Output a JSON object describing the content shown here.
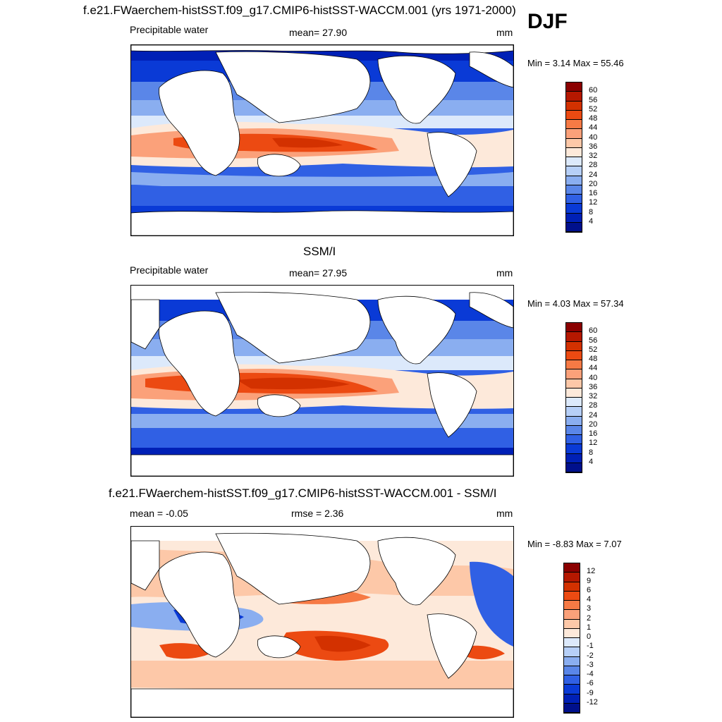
{
  "header": {
    "model_title": "f.e21.FWaerchem-histSST.f09_g17.CMIP6-histSST-WACCM.001 (yrs 1971-2000)",
    "season": "DJF"
  },
  "panels": [
    {
      "id": "model",
      "variable": "Precipitable water",
      "stat_text": "mean=  27.90",
      "units": "mm",
      "range_text": "Min =   3.14 Max =  55.46",
      "colorbar": {
        "labels": [
          "60",
          "56",
          "52",
          "48",
          "44",
          "40",
          "36",
          "32",
          "28",
          "24",
          "20",
          "16",
          "12",
          "8",
          "4"
        ],
        "colors": [
          "#8b0000",
          "#b51800",
          "#d33100",
          "#ec4a12",
          "#f67a45",
          "#fba17a",
          "#fdc8a8",
          "#fde9da",
          "#dce9fb",
          "#b6cff7",
          "#8aaef0",
          "#5a86e8",
          "#3060e4",
          "#0a3ad6",
          "#0020b6",
          "#00108c"
        ]
      }
    },
    {
      "id": "obs",
      "panel_title": "SSM/I",
      "variable": "Precipitable water",
      "stat_text": "mean=  27.95",
      "units": "mm",
      "range_text": "Min =   4.03 Max =  57.34",
      "colorbar": {
        "labels": [
          "60",
          "56",
          "52",
          "48",
          "44",
          "40",
          "36",
          "32",
          "28",
          "24",
          "20",
          "16",
          "12",
          "8",
          "4"
        ],
        "colors": [
          "#8b0000",
          "#b51800",
          "#d33100",
          "#ec4a12",
          "#f67a45",
          "#fba17a",
          "#fdc8a8",
          "#fde9da",
          "#dce9fb",
          "#b6cff7",
          "#8aaef0",
          "#5a86e8",
          "#3060e4",
          "#0a3ad6",
          "#0020b6",
          "#00108c"
        ]
      }
    },
    {
      "id": "diff",
      "panel_title": "f.e21.FWaerchem-histSST.f09_g17.CMIP6-histSST-WACCM.001 - SSM/I",
      "stat_text": "mean =  -0.05",
      "rmse_text": "rmse =   2.36",
      "units": "mm",
      "range_text": "Min =  -8.83 Max =   7.07",
      "colorbar": {
        "labels": [
          "12",
          "9",
          "6",
          "4",
          "3",
          "2",
          "1",
          "0",
          "-1",
          "-2",
          "-3",
          "-4",
          "-6",
          "-9",
          "-12"
        ],
        "colors": [
          "#8b0000",
          "#b51800",
          "#d33100",
          "#ec4a12",
          "#f67a45",
          "#fba17a",
          "#fdc8a8",
          "#fde9da",
          "#dce9fb",
          "#b6cff7",
          "#8aaef0",
          "#5a86e8",
          "#3060e4",
          "#0a3ad6",
          "#0020b6",
          "#00108c"
        ]
      }
    }
  ]
}
